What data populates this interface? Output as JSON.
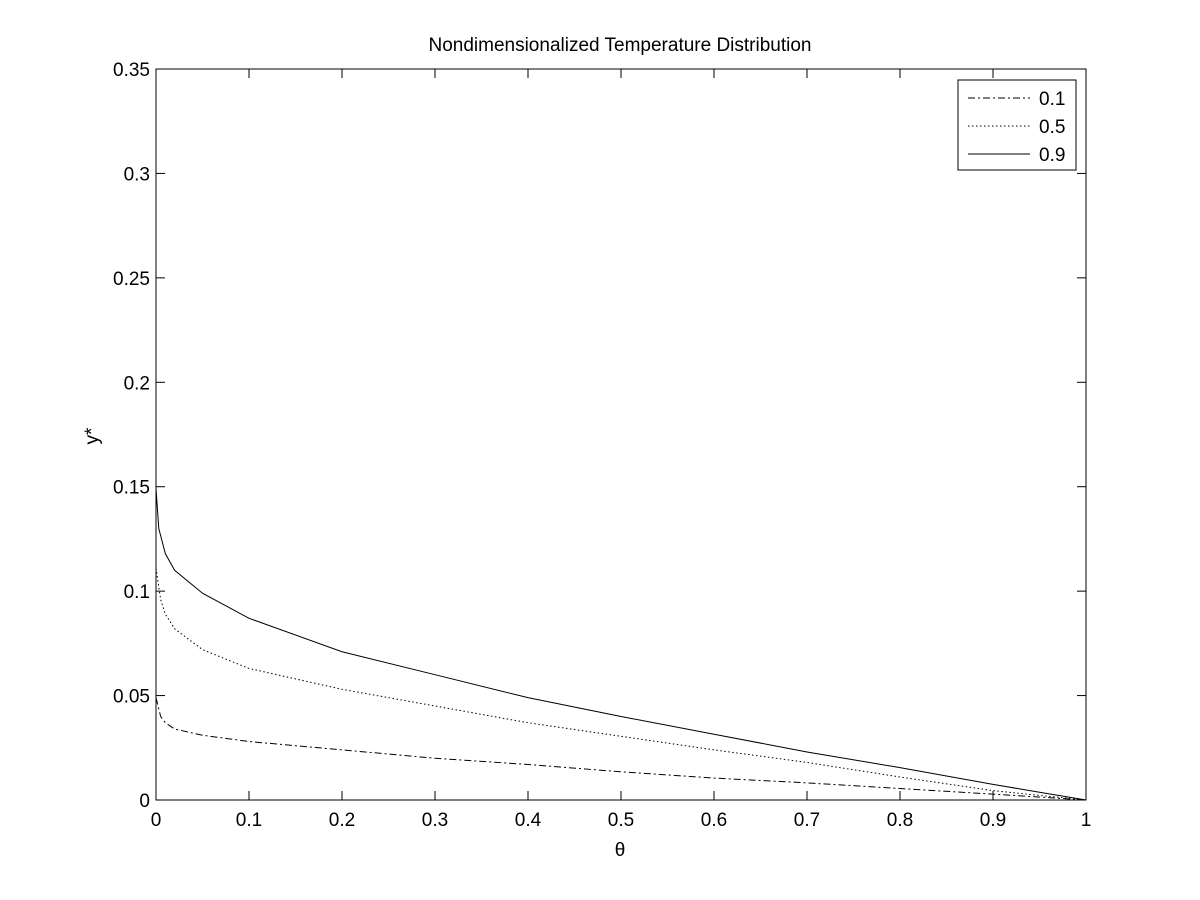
{
  "chart_data": {
    "type": "line",
    "title": "Nondimensionalized Temperature Distribution",
    "xlabel": "θ",
    "ylabel": "y*",
    "xlim": [
      0,
      1
    ],
    "ylim": [
      0,
      0.35
    ],
    "x_ticks": [
      0,
      0.1,
      0.2,
      0.3,
      0.4,
      0.5,
      0.6,
      0.7,
      0.8,
      0.9,
      1
    ],
    "x_tick_labels": [
      "0",
      "0.1",
      "0.2",
      "0.3",
      "0.4",
      "0.5",
      "0.6",
      "0.7",
      "0.8",
      "0.9",
      "1"
    ],
    "y_ticks": [
      0,
      0.05,
      0.1,
      0.15,
      0.2,
      0.25,
      0.3,
      0.35
    ],
    "y_tick_labels": [
      "0",
      "0.05",
      "0.1",
      "0.15",
      "0.2",
      "0.25",
      "0.3",
      "0.35"
    ],
    "grid": false,
    "legend_position": "top-right",
    "series": [
      {
        "name": "0.1",
        "line_style": "dash-dot",
        "color": "#000000",
        "x": [
          0,
          0.005,
          0.01,
          0.02,
          0.05,
          0.1,
          0.2,
          0.3,
          0.4,
          0.5,
          0.6,
          0.7,
          0.8,
          0.9,
          0.95,
          1
        ],
        "y": [
          0.049,
          0.04,
          0.037,
          0.034,
          0.031,
          0.028,
          0.024,
          0.02,
          0.017,
          0.0135,
          0.0105,
          0.0082,
          0.0055,
          0.0028,
          0.0014,
          0
        ]
      },
      {
        "name": "0.5",
        "line_style": "dotted",
        "color": "#000000",
        "x": [
          0,
          0.005,
          0.01,
          0.02,
          0.05,
          0.1,
          0.2,
          0.3,
          0.4,
          0.5,
          0.6,
          0.7,
          0.8,
          0.9,
          0.95,
          1
        ],
        "y": [
          0.111,
          0.096,
          0.089,
          0.082,
          0.072,
          0.063,
          0.053,
          0.045,
          0.037,
          0.0305,
          0.024,
          0.018,
          0.011,
          0.0045,
          0.0022,
          0
        ]
      },
      {
        "name": "0.9",
        "line_style": "solid",
        "color": "#000000",
        "x": [
          0,
          0.003,
          0.01,
          0.02,
          0.05,
          0.1,
          0.2,
          0.3,
          0.4,
          0.5,
          0.6,
          0.7,
          0.8,
          0.9,
          0.95,
          1
        ],
        "y": [
          0.149,
          0.13,
          0.118,
          0.11,
          0.099,
          0.087,
          0.071,
          0.06,
          0.049,
          0.04,
          0.0315,
          0.023,
          0.0155,
          0.0075,
          0.0037,
          0
        ]
      }
    ]
  }
}
